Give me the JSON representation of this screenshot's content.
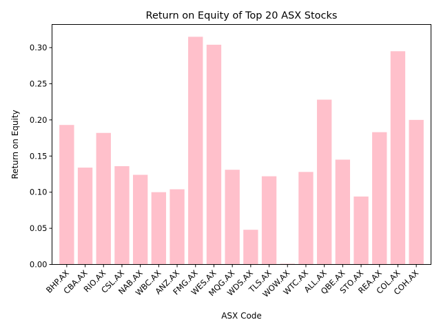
{
  "chart_data": {
    "type": "bar",
    "title": "Return on Equity of Top 20 ASX Stocks",
    "xlabel": "ASX Code",
    "ylabel": "Return on Equity",
    "categories": [
      "BHP.AX",
      "CBA.AX",
      "RIO.AX",
      "CSL.AX",
      "NAB.AX",
      "WBC.AX",
      "ANZ.AX",
      "FMG.AX",
      "WES.AX",
      "MQG.AX",
      "WDS.AX",
      "TLS.AX",
      "WOW.AX",
      "WTC.AX",
      "ALL.AX",
      "QBE.AX",
      "STO.AX",
      "REA.AX",
      "COL.AX",
      "COH.AX"
    ],
    "values": [
      0.193,
      0.134,
      0.182,
      0.136,
      0.124,
      0.1,
      0.104,
      0.315,
      0.304,
      0.131,
      0.048,
      0.122,
      0.001,
      0.128,
      0.228,
      0.145,
      0.094,
      0.183,
      0.295,
      0.2
    ],
    "ylim": [
      0,
      0.332
    ],
    "yticks": [
      0.0,
      0.05,
      0.1,
      0.15,
      0.2,
      0.25,
      0.3
    ],
    "ytick_labels": [
      "0.00",
      "0.05",
      "0.10",
      "0.15",
      "0.20",
      "0.25",
      "0.30"
    ],
    "bar_color": "#ffc0cb",
    "grid": false,
    "legend": "none"
  }
}
